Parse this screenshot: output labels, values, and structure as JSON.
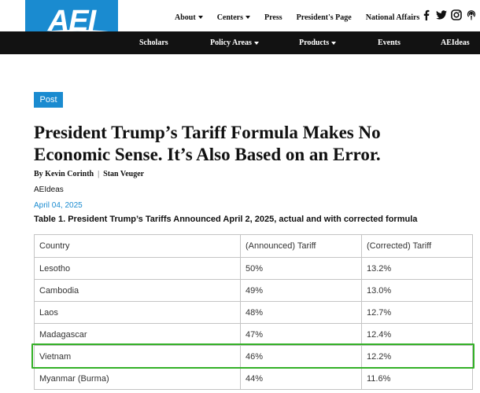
{
  "header": {
    "logo_text": "AEI",
    "top_nav": [
      {
        "label": "About",
        "dropdown": true
      },
      {
        "label": "Centers",
        "dropdown": true
      },
      {
        "label": "Press",
        "dropdown": false
      },
      {
        "label": "President's Page",
        "dropdown": false
      },
      {
        "label": "National Affairs",
        "dropdown": false
      }
    ],
    "social_icons": [
      "facebook-icon",
      "twitter-icon",
      "instagram-icon",
      "podcast-icon"
    ],
    "main_nav": [
      {
        "label": "Scholars",
        "dropdown": false
      },
      {
        "label": "Policy Areas",
        "dropdown": true
      },
      {
        "label": "Products",
        "dropdown": true
      },
      {
        "label": "Events",
        "dropdown": false
      },
      {
        "label": "AEIdeas",
        "dropdown": false
      }
    ]
  },
  "article": {
    "badge": "Post",
    "title": "President Trump’s Tariff Formula Makes No Economic Sense. It’s Also Based on an Error.",
    "byline_prefix": "By",
    "authors": [
      "Kevin Corinth",
      "Stan Veuger"
    ],
    "section": "AEIdeas",
    "date": "April 04, 2025",
    "table_caption": "Table 1. President Trump’s Tariffs Announced April 2, 2025, actual and with corrected formula"
  },
  "table": {
    "headers": [
      "Country",
      "(Announced) Tariff",
      "(Corrected) Tariff"
    ],
    "rows": [
      [
        "Lesotho",
        "50%",
        "13.2%"
      ],
      [
        "Cambodia",
        "49%",
        "13.0%"
      ],
      [
        "Laos",
        "48%",
        "12.7%"
      ],
      [
        "Madagascar",
        "47%",
        "12.4%"
      ],
      [
        "Vietnam",
        "46%",
        "12.2%"
      ],
      [
        "Myanmar (Burma)",
        "44%",
        "11.6%"
      ]
    ],
    "highlighted_row": "Vietnam"
  },
  "colors": {
    "brand_blue": "#1a8bd0",
    "nav_black": "#121212",
    "highlight_green": "#33b026"
  }
}
